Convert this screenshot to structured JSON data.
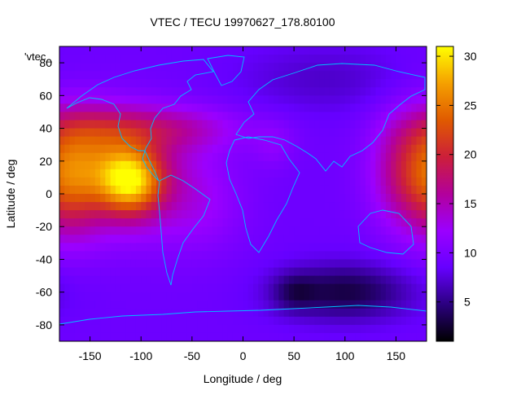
{
  "chart_data": {
    "type": "heatmap",
    "title": "VTEC / TECU 19970627_178.80100",
    "xlabel": "Longitude / deg",
    "ylabel": "Latitude / deg",
    "series_label": "'vtec_",
    "xlim": [
      -180,
      180
    ],
    "ylim": [
      -90,
      90
    ],
    "xticks": [
      -150,
      -100,
      -50,
      0,
      50,
      100,
      150
    ],
    "yticks": [
      -80,
      -60,
      -40,
      -20,
      0,
      20,
      40,
      60,
      80
    ],
    "colorbar": {
      "min": 1,
      "max": 31,
      "ticks": [
        5,
        10,
        15,
        20,
        25,
        30
      ],
      "colormap": [
        "#000000",
        "#2b007f",
        "#6600ff",
        "#9b00ff",
        "#b3009b",
        "#cc1f3a",
        "#e05a00",
        "#f5a000",
        "#ffff00"
      ]
    },
    "coastline_color": "#00bfff",
    "field": {
      "background": 9,
      "features": [
        {
          "lon": -110,
          "lat": 8,
          "slon": 22,
          "slat": 14,
          "amp": 15
        },
        {
          "lon": -120,
          "lat": 10,
          "slon": 55,
          "slat": 25,
          "amp": 7
        },
        {
          "lon": -140,
          "lat": 25,
          "slon": 25,
          "slat": 20,
          "amp": 4
        },
        {
          "lon": -90,
          "lat": 40,
          "slon": 60,
          "slat": 10,
          "amp": 6
        },
        {
          "lon": -165,
          "lat": 10,
          "slon": 20,
          "slat": 25,
          "amp": 6
        },
        {
          "lon": 165,
          "lat": 15,
          "slon": 25,
          "slat": 25,
          "amp": 8
        },
        {
          "lon": -40,
          "lat": -10,
          "slon": 30,
          "slat": 20,
          "amp": 2
        },
        {
          "lon": 100,
          "lat": -60,
          "slon": 45,
          "slat": 12,
          "amp": -6
        },
        {
          "lon": 50,
          "lat": -60,
          "slon": 15,
          "slat": 8,
          "amp": -3
        },
        {
          "lon": 80,
          "lat": 70,
          "slon": 60,
          "slat": 15,
          "amp": -2
        },
        {
          "lon": 30,
          "lat": 30,
          "slon": 15,
          "slat": 10,
          "amp": 2
        }
      ]
    }
  }
}
